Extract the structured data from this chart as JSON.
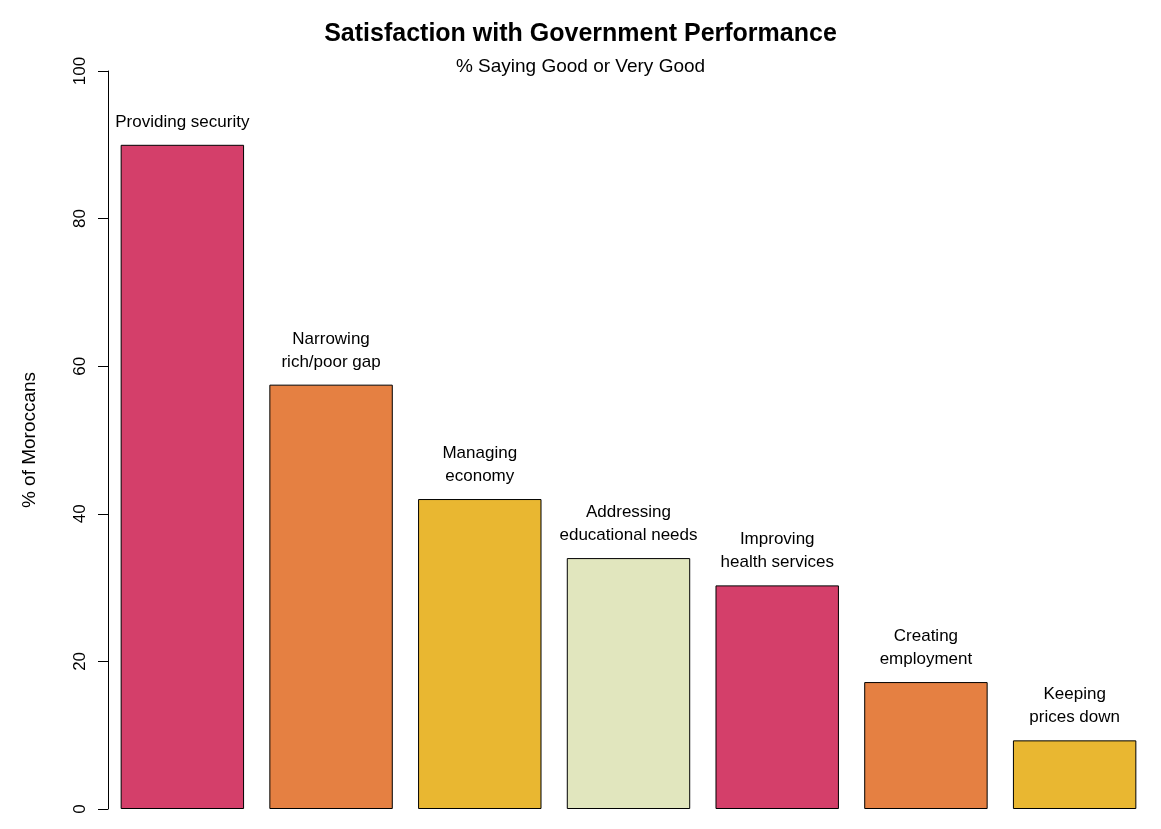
{
  "chart_data": {
    "type": "bar",
    "title": "Satisfaction with Government Performance",
    "subtitle": "% Saying Good or Very Good",
    "ylabel": "% of Moroccans",
    "categories": [
      "Providing security",
      "Narrowing\nrich/poor gap",
      "Managing\neconomy",
      "Addressing\neducational needs",
      "Improving\nhealth services",
      "Creating\nemployment",
      "Keeping\nprices down"
    ],
    "values": [
      90,
      57.5,
      42,
      34,
      30.3,
      17.2,
      9.3
    ],
    "colors": [
      "#d43f6a",
      "#e58042",
      "#e9b731",
      "#e1e6be",
      "#d43f6a",
      "#e58042",
      "#e9b731"
    ],
    "ylim": [
      0,
      100
    ],
    "yticks": [
      0,
      20,
      40,
      60,
      80,
      100
    ],
    "grid": false
  }
}
